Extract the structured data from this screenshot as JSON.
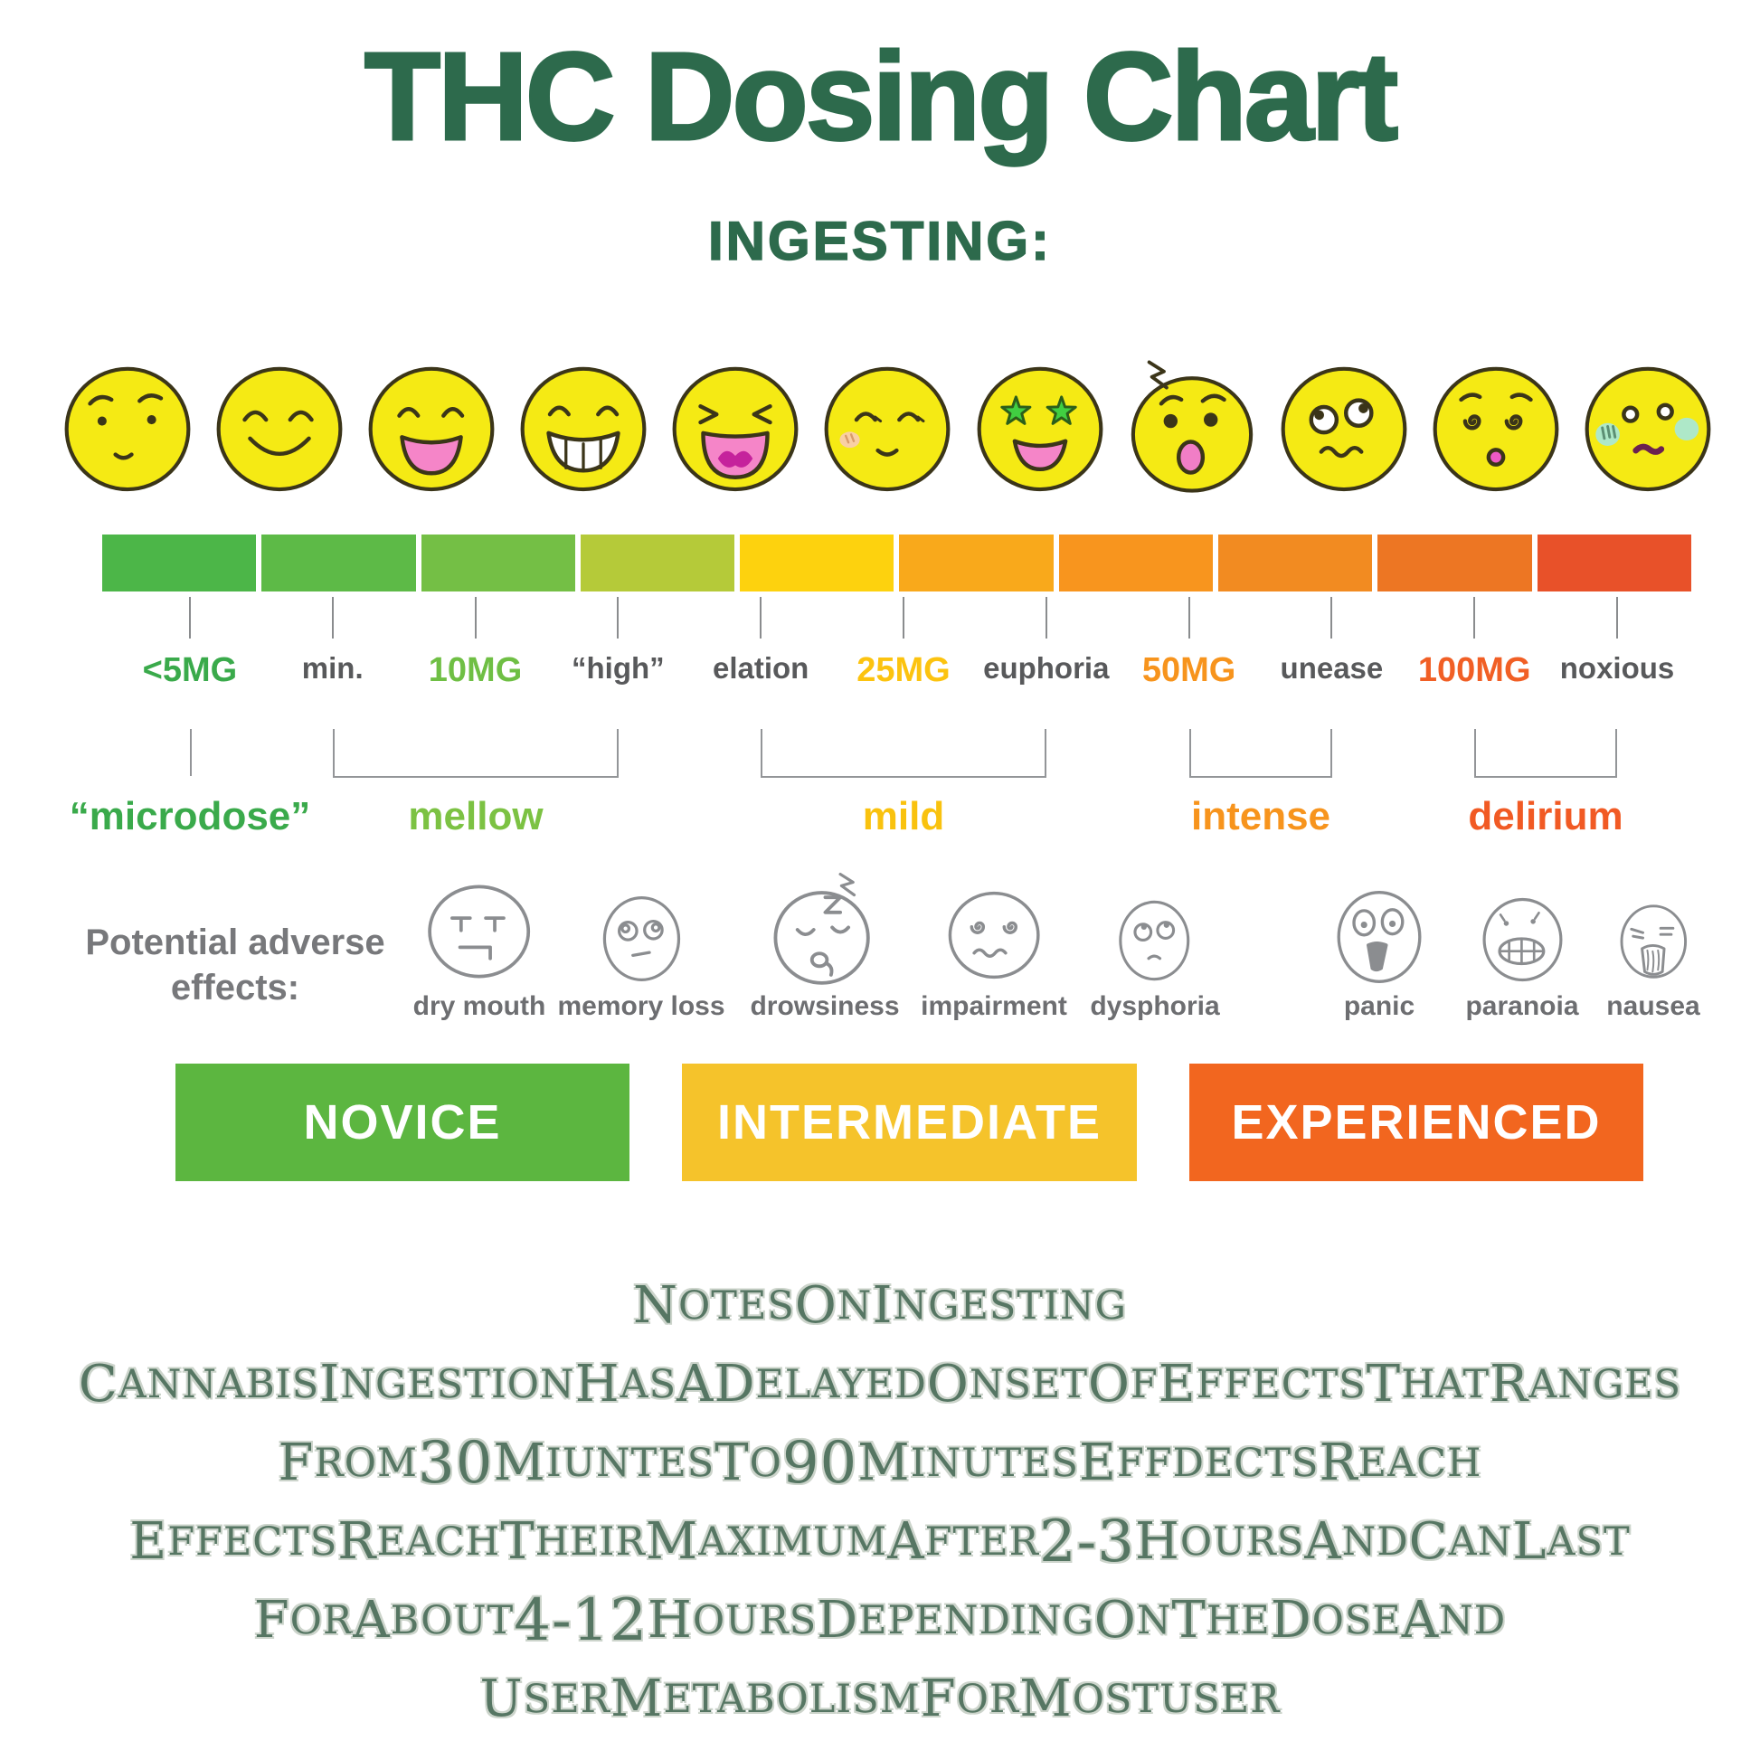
{
  "title": "THC Dosing Chart",
  "subtitle": "INGESTING:",
  "colors": {
    "title_green": "#2d6a4c",
    "notes_green": "#567663",
    "gray_text": "#58595b"
  },
  "scale": {
    "emojis": [
      {
        "icon": "neutral-face-icon"
      },
      {
        "icon": "smiling-face-icon"
      },
      {
        "icon": "open-smile-face-icon"
      },
      {
        "icon": "grinning-teeth-face-icon"
      },
      {
        "icon": "laughing-face-icon"
      },
      {
        "icon": "relaxed-blush-face-icon"
      },
      {
        "icon": "star-eyes-face-icon"
      },
      {
        "icon": "shocked-face-icon"
      },
      {
        "icon": "confused-face-icon"
      },
      {
        "icon": "dizzy-face-icon"
      },
      {
        "icon": "nauseous-face-icon"
      }
    ],
    "bar": [
      "#4cb648",
      "#5dba47",
      "#74bf45",
      "#b5ca39",
      "#fdd20e",
      "#f9a91b",
      "#f8951e",
      "#f28b21",
      "#ed7623",
      "#e85129"
    ],
    "ticks": [
      {
        "label": "<5MG",
        "color": "#3aaa4b"
      },
      {
        "label": "min.",
        "color": "#58595b"
      },
      {
        "label": "10MG",
        "color": "#6fbf44"
      },
      {
        "label": "“high”",
        "color": "#58595b"
      },
      {
        "label": "elation",
        "color": "#58595b"
      },
      {
        "label": "25MG",
        "color": "#fcc30f"
      },
      {
        "label": "euphoria",
        "color": "#58595b"
      },
      {
        "label": "50MG",
        "color": "#f7941d"
      },
      {
        "label": "unease",
        "color": "#58595b"
      },
      {
        "label": "100MG",
        "color": "#f15f25"
      },
      {
        "label": "noxious",
        "color": "#58595b"
      }
    ],
    "groups": [
      {
        "label": "“microdose”",
        "color": "#3aaa4b"
      },
      {
        "label": "mellow",
        "color": "#7cc243"
      },
      {
        "label": "mild",
        "color": "#f9c20e"
      },
      {
        "label": "intense",
        "color": "#f7941d"
      },
      {
        "label": "delirium",
        "color": "#f15a24"
      }
    ]
  },
  "adverse": {
    "label_line1": "Potential adverse",
    "label_line2": "effects:",
    "items": [
      {
        "icon": "dry-mouth-face-icon",
        "label": "dry mouth"
      },
      {
        "icon": "memory-loss-face-icon",
        "label": "memory loss"
      },
      {
        "icon": "drowsiness-face-icon",
        "label": "drowsiness"
      },
      {
        "icon": "impairment-face-icon",
        "label": "impairment"
      },
      {
        "icon": "dysphoria-face-icon",
        "label": "dysphoria"
      },
      {
        "icon": "panic-face-icon",
        "label": "panic"
      },
      {
        "icon": "paranoia-face-icon",
        "label": "paranoia"
      },
      {
        "icon": "nausea-face-icon",
        "label": "nausea"
      }
    ]
  },
  "levels": [
    {
      "label": "NOVICE",
      "color": "#5cb640"
    },
    {
      "label": "INTERMEDIATE",
      "color": "#f5c32b"
    },
    {
      "label": "EXPERIENCED",
      "color": "#f2661f"
    }
  ],
  "notes": {
    "lines": [
      "NOTES ON INGESTING",
      "CANNABIS INGESTION HAS A DELAYED ONSET OF EFFECTS THAT RANGES",
      "FROM 30 MIUNTES TO 90 MINUTES EFFDECTS REACH",
      "EFFECTS REACH THEIR MAXIMUM AFTER 2-3 HOURS AND CAN LAST",
      "FOR ABOUT 4-12 HOURS DEPENDING ON THE DOSE AND",
      "USER METABOLISM FOR MOSTUSER"
    ]
  }
}
